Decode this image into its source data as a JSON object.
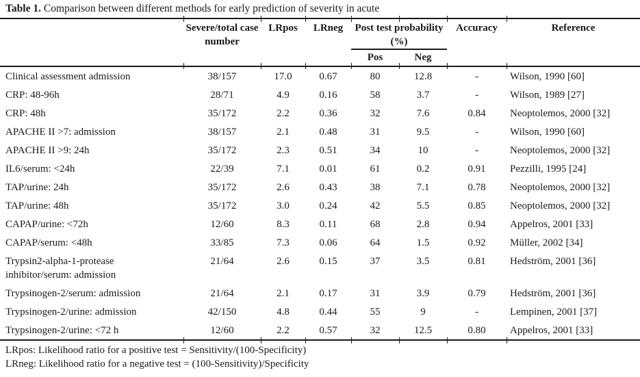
{
  "title": {
    "label": "Table 1.",
    "text": "Comparison between different methods for early prediction of severity in acute"
  },
  "table": {
    "headers": {
      "method": "",
      "severe_total": "Severe/total case number",
      "lrpos": "LRpos",
      "lrneg": "LRneg",
      "post_test": "Post test probability (%)",
      "pos": "Pos",
      "neg": "Neg",
      "accuracy": "Accuracy",
      "reference": "Reference"
    },
    "rows": [
      {
        "method": "Clinical assessment admission",
        "severe_total": "38/157",
        "lrpos": "17.0",
        "lrneg": "0.67",
        "pos": "80",
        "neg": "12.8",
        "accuracy": "-",
        "reference": "Wilson, 1990 [60]"
      },
      {
        "method": "CRP: 48-96h",
        "severe_total": "28/71",
        "lrpos": "4.9",
        "lrneg": "0.16",
        "pos": "58",
        "neg": "3.7",
        "accuracy": "-",
        "reference": "Wilson, 1989 [27]"
      },
      {
        "method": "CRP: 48h",
        "severe_total": "35/172",
        "lrpos": "2.2",
        "lrneg": "0.36",
        "pos": "32",
        "neg": "7.6",
        "accuracy": "0.84",
        "reference": "Neoptolemos, 2000 [32]"
      },
      {
        "method": "APACHE II >7: admission",
        "severe_total": "38/157",
        "lrpos": "2.1",
        "lrneg": "0.48",
        "pos": "31",
        "neg": "9.5",
        "accuracy": "-",
        "reference": "Wilson, 1990 [60]"
      },
      {
        "method": "APACHE II >9: 24h",
        "severe_total": "35/172",
        "lrpos": "2.3",
        "lrneg": "0.51",
        "pos": "34",
        "neg": "10",
        "accuracy": "-",
        "reference": "Neoptolemos, 2000 [32]"
      },
      {
        "method": "IL6/serum: <24h",
        "severe_total": "22/39",
        "lrpos": "7.1",
        "lrneg": "0.01",
        "pos": "61",
        "neg": "0.2",
        "accuracy": "0.91",
        "reference": "Pezzilli, 1995 [24]"
      },
      {
        "method": "TAP/urine: 24h",
        "severe_total": "35/172",
        "lrpos": "2.6",
        "lrneg": "0.43",
        "pos": "38",
        "neg": "7.1",
        "accuracy": "0.78",
        "reference": "Neoptolemos, 2000 [32]"
      },
      {
        "method": "TAP/urine: 48h",
        "severe_total": "35/172",
        "lrpos": "3.0",
        "lrneg": "0.24",
        "pos": "42",
        "neg": "5.5",
        "accuracy": "0.85",
        "reference": "Neoptolemos, 2000 [32]"
      },
      {
        "method": "CAPAP/urine: <72h",
        "severe_total": "12/60",
        "lrpos": "8.3",
        "lrneg": "0.11",
        "pos": "68",
        "neg": "2.8",
        "accuracy": "0.94",
        "reference": "Appelros, 2001 [33]"
      },
      {
        "method": "CAPAP/serum: <48h",
        "severe_total": "33/85",
        "lrpos": "7.3",
        "lrneg": "0.06",
        "pos": "64",
        "neg": "1.5",
        "accuracy": "0.92",
        "reference": "Müller, 2002 [34]"
      },
      {
        "method": "Trypsin2-alpha-1-protease inhibitor/serum: admission",
        "severe_total": "21/64",
        "lrpos": "2.6",
        "lrneg": "0.15",
        "pos": "37",
        "neg": "3.5",
        "accuracy": "0.81",
        "reference": "Hedström, 2001 [36]"
      },
      {
        "method": "Trypsinogen-2/serum: admission",
        "severe_total": "21/64",
        "lrpos": "2.1",
        "lrneg": "0.17",
        "pos": "31",
        "neg": "3.9",
        "accuracy": "0.79",
        "reference": "Hedström, 2001 [36]"
      },
      {
        "method": "Trypsinogen-2/urine: admission",
        "severe_total": "42/150",
        "lrpos": "4.8",
        "lrneg": "0.44",
        "pos": "55",
        "neg": "9",
        "accuracy": "-",
        "reference": "Lempinen, 2001 [37]"
      },
      {
        "method": "Trypsinogen-2/urine: <72 h",
        "severe_total": "12/60",
        "lrpos": "2.2",
        "lrneg": "0.57",
        "pos": "32",
        "neg": "12.5",
        "accuracy": "0.80",
        "reference": "Appelros, 2001 [33]"
      }
    ]
  },
  "footnotes": {
    "lrpos": "LRpos: Likelihood ratio for a positive test = Sensitivity/(100-Specificity)",
    "lrneg": "LRneg: Likelihood ratio for a negative test = (100-Sensitivity)/Specificity"
  },
  "colors": {
    "text": "#1a1a1a",
    "rule": "#1a1a1a",
    "background": "#ffffff"
  }
}
